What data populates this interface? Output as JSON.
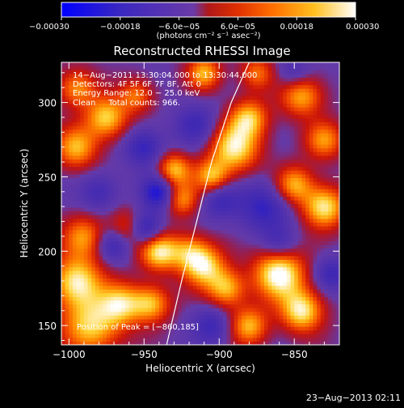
{
  "chart_data": {
    "type": "heatmap",
    "title": "Reconstructed RHESSI Image",
    "xlabel": "Heliocentric X (arcsec)",
    "ylabel": "Heliocentric Y (arcsec)",
    "xlim": [
      -1005,
      -820
    ],
    "ylim": [
      137,
      327
    ],
    "x_ticks": [
      -1000,
      -950,
      -900,
      -850
    ],
    "x_tick_labels": [
      "−1000",
      "−950",
      "−900",
      "−850"
    ],
    "y_ticks": [
      150,
      200,
      250,
      300
    ],
    "y_tick_labels": [
      "150",
      "200",
      "250",
      "300"
    ],
    "colorbar": {
      "range": [
        -0.0003,
        0.0003
      ],
      "ticks": [
        -0.0003,
        -0.00018,
        -6e-05,
        6e-05,
        0.00018,
        0.0003
      ],
      "tick_labels": [
        "−0.00030",
        "−0.00018",
        "−6.0e−05",
        "6.0e−05",
        "0.00018",
        "0.00030"
      ],
      "unit_label": "(photons cm⁻² s⁻¹ asec⁻²)",
      "colors": [
        "#0000ff",
        "#4030b0",
        "#6a3aa8",
        "#ff6a00",
        "#ffd040",
        "#ffffff"
      ]
    },
    "annotations": [
      "14−Aug−2011 13:30:04.000 to 13:30:44.000",
      "Detectors: 4F 5F 6F 7F 8F, Att 0",
      "Energy Range: 12.0 − 25.0 keV",
      "Clean     Total counts: 966."
    ],
    "peak_label": "Position of Peak = [−860,185]",
    "peak_position": [
      -860,
      185
    ],
    "limb_points": [
      [
        -935,
        137
      ],
      [
        -925,
        180
      ],
      [
        -915,
        220
      ],
      [
        -905,
        260
      ],
      [
        -892,
        300
      ],
      [
        -880,
        327
      ]
    ],
    "blobs": [
      {
        "x": -995,
        "y": 180,
        "v": 1.0,
        "s": 12
      },
      {
        "x": -985,
        "y": 150,
        "v": 0.9,
        "s": 14
      },
      {
        "x": -990,
        "y": 210,
        "v": 0.7,
        "s": 10
      },
      {
        "x": -965,
        "y": 165,
        "v": 0.8,
        "s": 10
      },
      {
        "x": -940,
        "y": 200,
        "v": 1.0,
        "s": 9
      },
      {
        "x": -945,
        "y": 165,
        "v": 0.8,
        "s": 9
      },
      {
        "x": -960,
        "y": 215,
        "v": 0.7,
        "s": 9
      },
      {
        "x": -920,
        "y": 200,
        "v": 0.6,
        "s": 9
      },
      {
        "x": -910,
        "y": 190,
        "v": 0.9,
        "s": 10
      },
      {
        "x": -895,
        "y": 175,
        "v": 0.8,
        "s": 9
      },
      {
        "x": -860,
        "y": 185,
        "v": 1.15,
        "s": 12
      },
      {
        "x": -845,
        "y": 160,
        "v": 1.0,
        "s": 10
      },
      {
        "x": -880,
        "y": 150,
        "v": 0.8,
        "s": 9
      },
      {
        "x": -830,
        "y": 230,
        "v": 1.0,
        "s": 10
      },
      {
        "x": -850,
        "y": 245,
        "v": 0.8,
        "s": 9
      },
      {
        "x": -890,
        "y": 270,
        "v": 1.0,
        "s": 12
      },
      {
        "x": -880,
        "y": 290,
        "v": 0.8,
        "s": 9
      },
      {
        "x": -905,
        "y": 250,
        "v": 0.8,
        "s": 8
      },
      {
        "x": -930,
        "y": 255,
        "v": 0.85,
        "s": 8
      },
      {
        "x": -925,
        "y": 235,
        "v": 0.7,
        "s": 8
      },
      {
        "x": -975,
        "y": 290,
        "v": 0.9,
        "s": 10
      },
      {
        "x": -995,
        "y": 270,
        "v": 0.8,
        "s": 10
      },
      {
        "x": -995,
        "y": 310,
        "v": 0.7,
        "s": 9
      },
      {
        "x": -955,
        "y": 305,
        "v": 0.6,
        "s": 8
      },
      {
        "x": -845,
        "y": 305,
        "v": 0.8,
        "s": 10
      },
      {
        "x": -830,
        "y": 275,
        "v": 0.7,
        "s": 9
      },
      {
        "x": -910,
        "y": 320,
        "v": 0.8,
        "s": 8
      },
      {
        "x": -875,
        "y": 320,
        "v": 0.6,
        "s": 8
      },
      {
        "x": -950,
        "y": 270,
        "v": -0.6,
        "s": 9
      },
      {
        "x": -915,
        "y": 285,
        "v": -0.5,
        "s": 10
      },
      {
        "x": -900,
        "y": 235,
        "v": -0.5,
        "s": 9
      },
      {
        "x": -870,
        "y": 230,
        "v": -0.6,
        "s": 12
      },
      {
        "x": -860,
        "y": 205,
        "v": -0.4,
        "s": 8
      },
      {
        "x": -940,
        "y": 240,
        "v": -0.8,
        "s": 8
      },
      {
        "x": -950,
        "y": 215,
        "v": -0.9,
        "s": 8
      },
      {
        "x": -970,
        "y": 205,
        "v": -0.6,
        "s": 8
      },
      {
        "x": -905,
        "y": 150,
        "v": -0.5,
        "s": 9
      },
      {
        "x": -825,
        "y": 185,
        "v": -0.5,
        "s": 8
      },
      {
        "x": -980,
        "y": 240,
        "v": -0.45,
        "s": 9
      },
      {
        "x": -850,
        "y": 320,
        "v": -0.4,
        "s": 8
      }
    ]
  },
  "footer": {
    "timestamp": "23−Aug−2013 02:11"
  }
}
